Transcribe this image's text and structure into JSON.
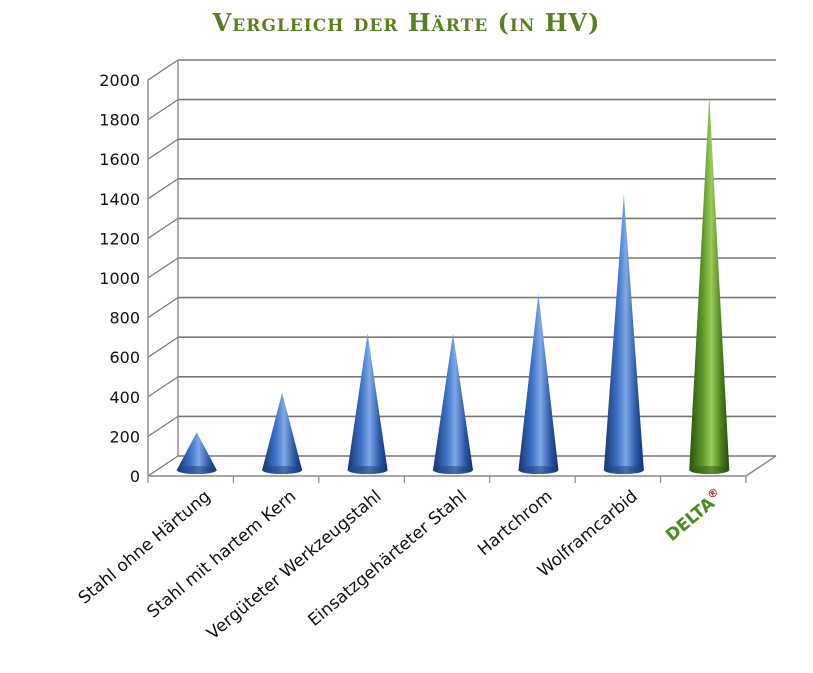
{
  "chart_data": {
    "type": "bar",
    "title": "Vergleich der Härte (in HV)",
    "xlabel": "",
    "ylabel": "",
    "ylim": [
      0,
      2000
    ],
    "yticks": [
      0,
      200,
      400,
      600,
      800,
      1000,
      1200,
      1400,
      1600,
      1800,
      2000
    ],
    "categories": [
      "Stahl ohne Härtung",
      "Stahl mit hartem Kern",
      "Vergüteter Werkzeugstahl",
      "Einsatzgehärteter Stahl",
      "Hartchrom",
      "Wolframcarbid",
      "DELTA"
    ],
    "values": [
      200,
      400,
      700,
      700,
      900,
      1400,
      1900
    ],
    "highlight_index": 6,
    "highlight_mark": "®",
    "grid": true,
    "colors": {
      "bar": "#2f5fb0",
      "highlight_bar": "#4f8a1f",
      "title": "#5a7f1e",
      "grid": "#777777"
    }
  }
}
